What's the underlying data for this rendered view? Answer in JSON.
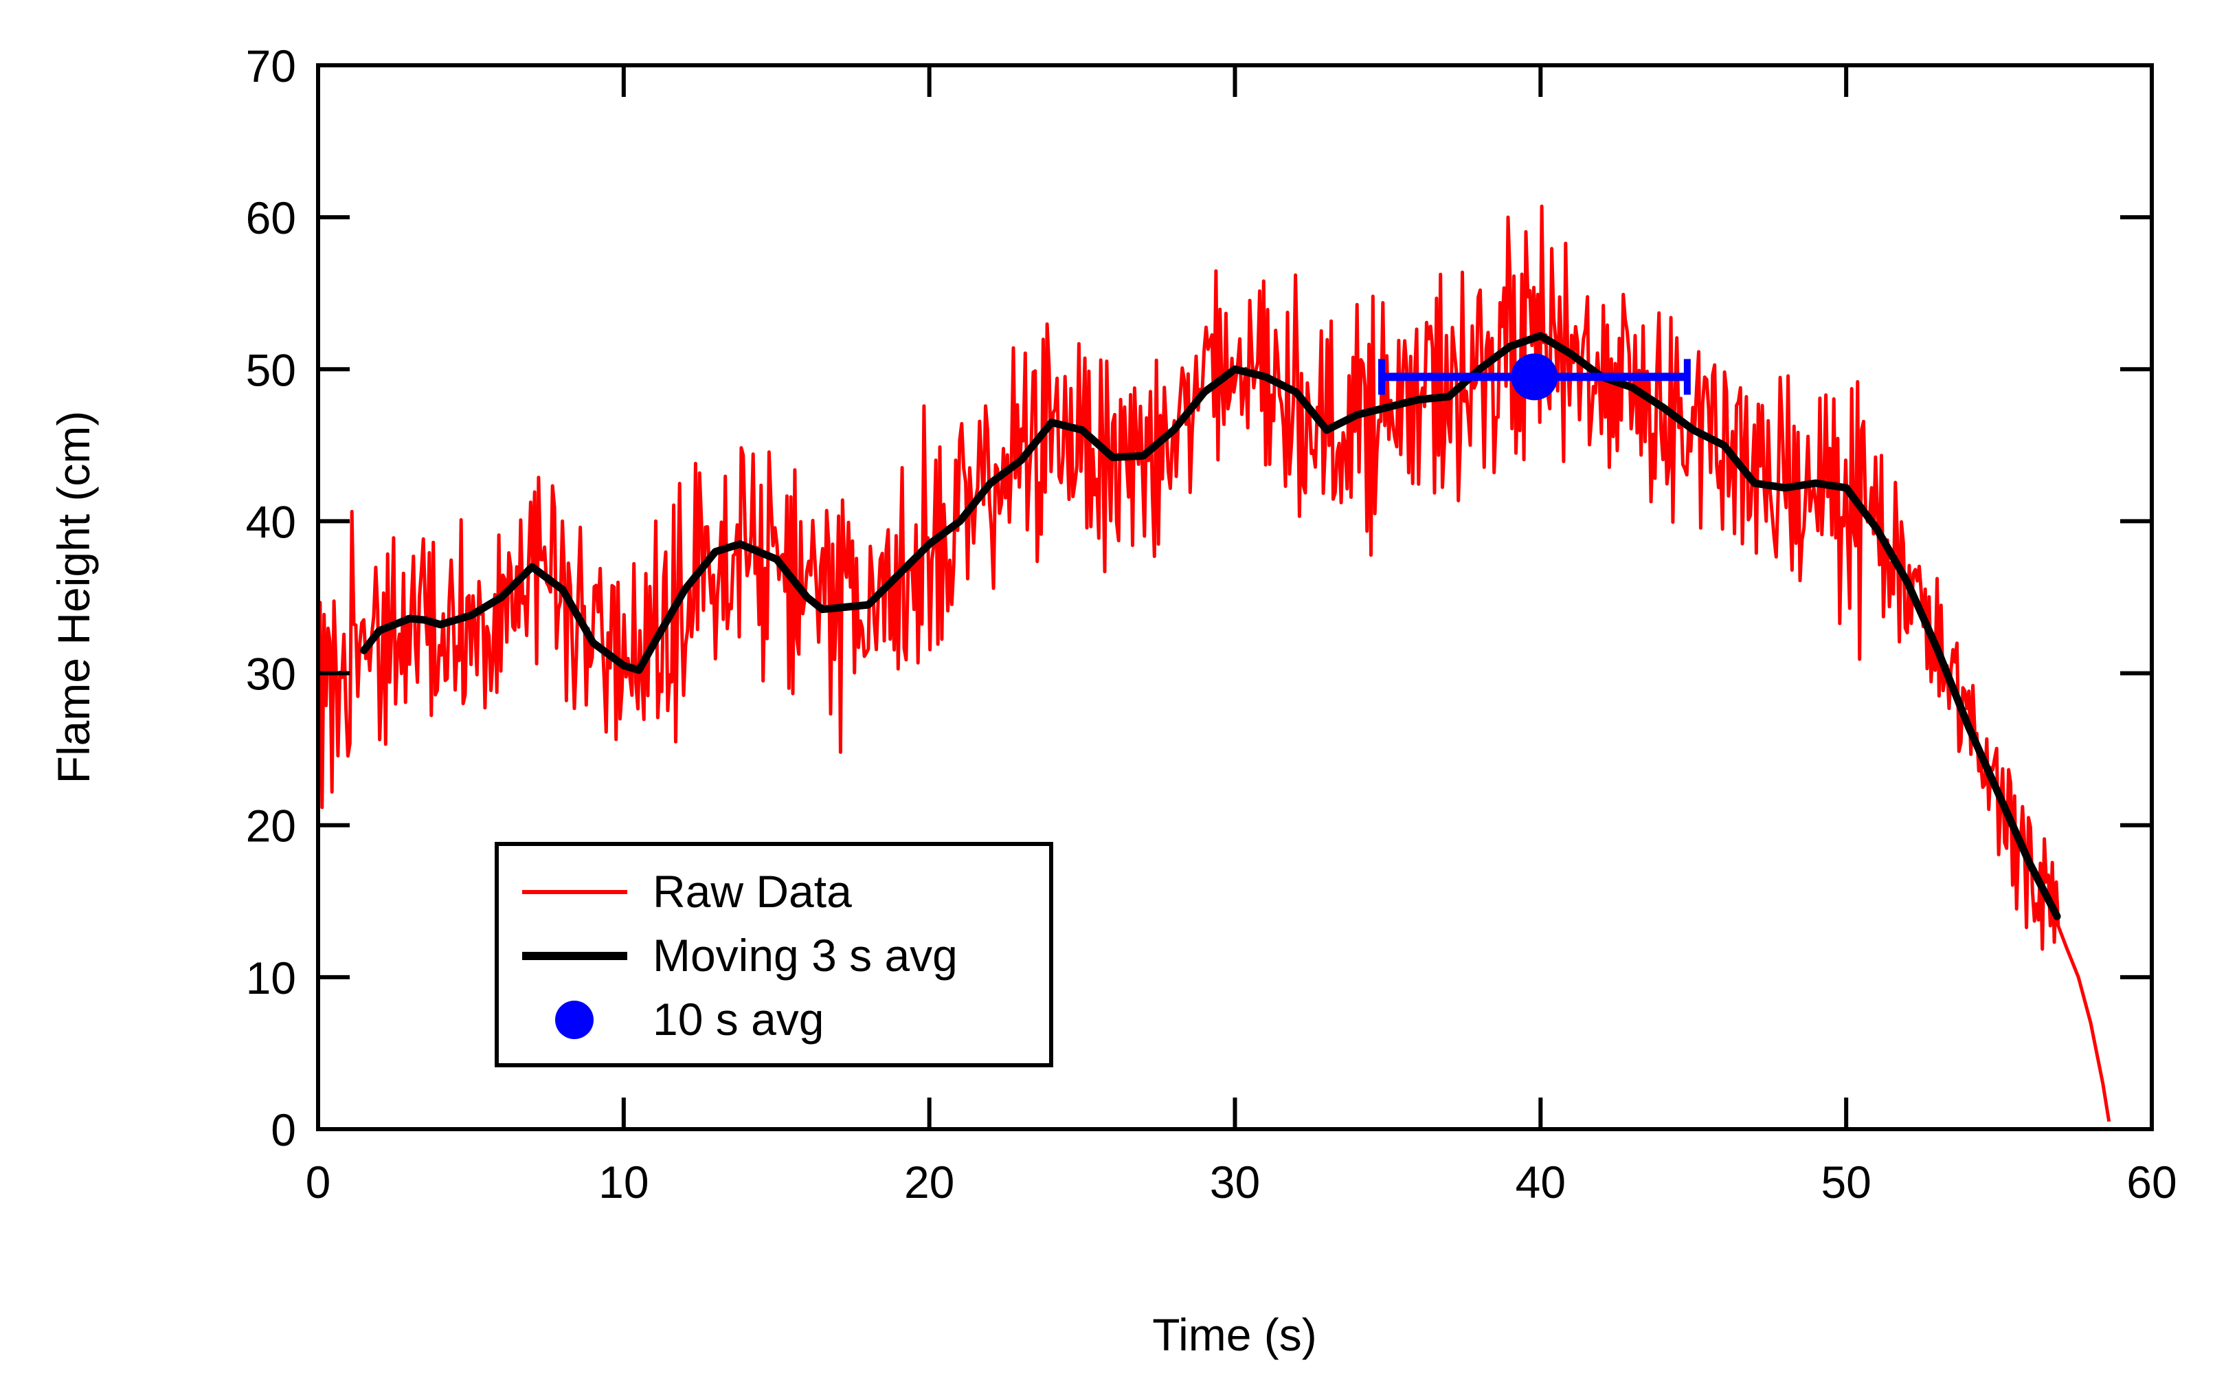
{
  "chart_data": {
    "type": "line",
    "xlabel": "Time (s)",
    "ylabel": "Flame Height (cm)",
    "xlim": [
      0,
      60
    ],
    "ylim": [
      0,
      70
    ],
    "xticks": [
      0,
      10,
      20,
      30,
      40,
      50,
      60
    ],
    "yticks": [
      0,
      10,
      20,
      30,
      40,
      50,
      60,
      70
    ],
    "grid": false,
    "legend_position": "bottom-left",
    "series": [
      {
        "name": "Raw Data",
        "color": "#ff0000",
        "style": "noisy-line",
        "noise_amplitude_cm": 7,
        "tail": {
          "x": [
            57.2,
            57.6,
            58.0,
            58.4,
            58.6
          ],
          "y": [
            12,
            10,
            7,
            3,
            0.5
          ]
        }
      },
      {
        "name": "Moving 3 s avg",
        "color": "#000000",
        "x": [
          1.5,
          2.0,
          3.0,
          3.5,
          4.0,
          5.0,
          6.0,
          7.0,
          8.0,
          9.0,
          10.0,
          10.5,
          11.0,
          12.0,
          13.0,
          13.8,
          15.0,
          16.0,
          16.5,
          17.0,
          18.0,
          19.0,
          20.0,
          21.0,
          22.0,
          23.0,
          24.0,
          25.0,
          26.0,
          27.0,
          28.0,
          29.0,
          30.0,
          31.0,
          32.0,
          33.0,
          34.0,
          35.0,
          36.0,
          37.0,
          38.0,
          39.0,
          40.0,
          41.0,
          42.0,
          43.0,
          44.0,
          45.0,
          46.0,
          47.0,
          48.0,
          49.0,
          50.0,
          51.0,
          52.0,
          53.0,
          54.0,
          55.0,
          56.0,
          56.9
        ],
        "y": [
          31.5,
          32.8,
          33.6,
          33.5,
          33.2,
          33.8,
          35.0,
          37.0,
          35.5,
          32.0,
          30.5,
          30.2,
          32.0,
          35.5,
          38.0,
          38.5,
          37.5,
          35.0,
          34.2,
          34.3,
          34.5,
          36.5,
          38.5,
          40.0,
          42.5,
          44.0,
          46.5,
          46.0,
          44.2,
          44.3,
          46.0,
          48.5,
          50.0,
          49.5,
          48.5,
          46.0,
          47.0,
          47.5,
          48.0,
          48.2,
          50.0,
          51.5,
          52.2,
          51.0,
          49.5,
          48.8,
          47.5,
          46.0,
          45.0,
          42.5,
          42.2,
          42.5,
          42.2,
          39.5,
          36.0,
          31.5,
          26.5,
          22.0,
          17.5,
          14.0
        ]
      },
      {
        "name": "10 s avg",
        "color": "#0000ff",
        "style": "marker-with-xerror",
        "x": 39.8,
        "y": 49.5,
        "xerr": [
          34.8,
          44.8
        ]
      }
    ]
  },
  "legend": {
    "items": [
      {
        "label": "Raw Data",
        "color": "#ff0000",
        "symbol": "line"
      },
      {
        "label": "Moving 3 s avg",
        "color": "#000000",
        "symbol": "thick-line"
      },
      {
        "label": "10 s avg",
        "color": "#0000ff",
        "symbol": "dot"
      }
    ]
  }
}
